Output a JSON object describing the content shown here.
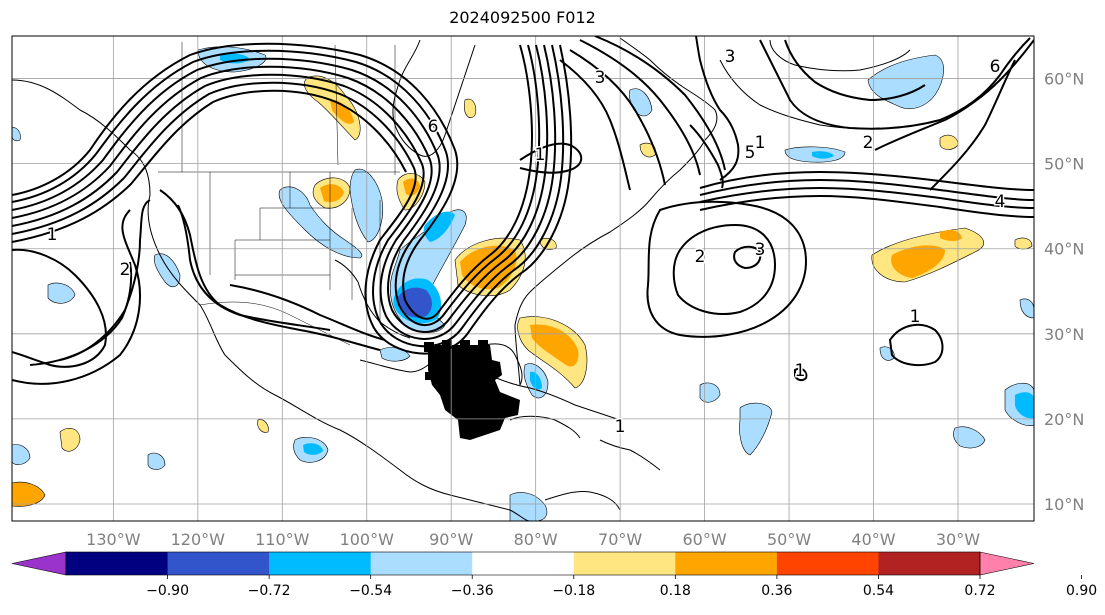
{
  "title": "2024092500 F012",
  "map": {
    "projection": "PlateCarree",
    "lon_range": [
      -142,
      -21
    ],
    "lat_range": [
      8,
      65
    ],
    "longitude_labels": [
      "130°W",
      "120°W",
      "110°W",
      "100°W",
      "90°W",
      "80°W",
      "70°W",
      "60°W",
      "50°W",
      "40°W",
      "30°W"
    ],
    "longitude_values": [
      -130,
      -120,
      -110,
      -100,
      -90,
      -80,
      -70,
      -60,
      -50,
      -40,
      -30
    ],
    "latitude_labels": [
      "10°N",
      "20°N",
      "30°N",
      "40°N",
      "50°N",
      "60°N"
    ],
    "latitude_values": [
      10,
      20,
      30,
      40,
      50,
      60
    ],
    "gridlines": true,
    "contour_labels": [
      "1",
      "1",
      "1",
      "1",
      "1",
      "1",
      "2",
      "2",
      "2",
      "3",
      "3",
      "3",
      "4",
      "5",
      "6",
      "6"
    ],
    "hatched_region": "Gulf of Mexico / Yucatan stippled area"
  },
  "colorbar": {
    "orientation": "horizontal",
    "extend": "both",
    "tick_labels": [
      "−0.90",
      "−0.72",
      "−0.54",
      "−0.36",
      "−0.18",
      "0.18",
      "0.36",
      "0.54",
      "0.72",
      "0.90"
    ],
    "colors": [
      "#9933cc",
      "#000080",
      "#3355cc",
      "#00bbff",
      "#aaddff",
      "#ffffff",
      "#ffe680",
      "#ffa500",
      "#ff4400",
      "#b22222",
      "#ff80aa"
    ]
  }
}
